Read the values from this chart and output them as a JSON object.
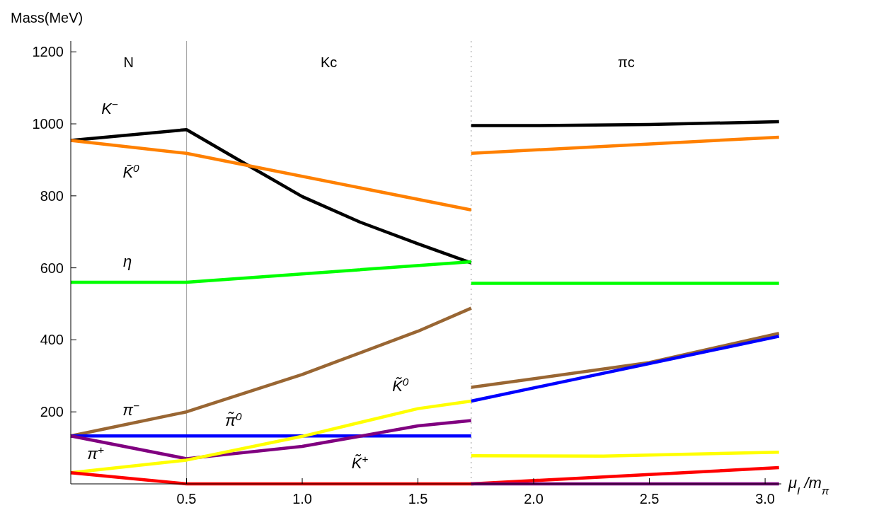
{
  "chart_data": {
    "type": "line",
    "xlabel": "μ$_{I}$ /m$_{π}$",
    "ylabel": "Mass(MeV)",
    "xlim": [
      0,
      3.07
    ],
    "ylim": [
      0,
      1230
    ],
    "xticks": [
      0.5,
      {
        "value": 1.0,
        "label": "1.0"
      },
      1.5,
      {
        "value": 2.0,
        "label": "2.0"
      },
      2.5,
      {
        "value": 3.0,
        "label": "3.0"
      }
    ],
    "yticks": [
      200,
      400,
      600,
      800,
      1000,
      1200
    ],
    "grid": false,
    "line_style": "solid",
    "series": [
      {
        "name": "K$^{−}$",
        "color": "#000000",
        "x": [
          0,
          0.5,
          0.8,
          1.0,
          1.25,
          1.5,
          1.73
        ],
        "values": [
          954,
          984,
          872,
          798,
          727,
          667,
          614
        ]
      },
      {
        "name": "K̄$^{0}$",
        "color": "#ff8000",
        "x": [
          0,
          0.5,
          1.73
        ],
        "values": [
          954,
          918,
          761
        ]
      },
      {
        "name": "η",
        "color": "#00ff00",
        "x": [
          0,
          0.5,
          1.73
        ],
        "values": [
          560,
          560,
          617
        ]
      },
      {
        "name": "π$^{−}$",
        "color": "#996633",
        "x": [
          0,
          0.5,
          1.0,
          1.5,
          1.73
        ],
        "values": [
          133,
          200,
          304,
          424,
          488
        ]
      },
      {
        "name": "π̃$^{0}$",
        "color": "#0000ff",
        "x": [
          0,
          0.5,
          1.73
        ],
        "values": [
          133,
          133,
          133
        ]
      },
      {
        "name": "π$^{+}$",
        "color": "#800080",
        "x": [
          0,
          0.5,
          1.0,
          1.5,
          1.73
        ],
        "values": [
          133,
          70,
          104,
          161,
          176
        ]
      },
      {
        "name": "K̃$^{0}$",
        "color": "#ffff00",
        "x": [
          0,
          0.5,
          1.0,
          1.5,
          1.73
        ],
        "values": [
          31,
          66,
          132,
          209,
          230
        ]
      },
      {
        "name": "K̃$^{+}$",
        "color": "#ff0000",
        "x": [
          0,
          0.5,
          1.73,
          2.5,
          3.06
        ],
        "values": [
          31,
          0,
          0,
          26,
          45
        ]
      },
      {
        "color": "#000000",
        "x": [
          1.73,
          2.0,
          2.5,
          3.06
        ],
        "values": [
          995,
          995,
          998,
          1006
        ]
      },
      {
        "color": "#ff8000",
        "x": [
          1.73,
          3.06
        ],
        "values": [
          918,
          963
        ]
      },
      {
        "color": "#00ff00",
        "x": [
          1.73,
          3.06
        ],
        "values": [
          557,
          557
        ]
      },
      {
        "color": "#996633",
        "x": [
          1.73,
          2.5,
          3.06
        ],
        "values": [
          268,
          337,
          418
        ]
      },
      {
        "color": "#0000ff",
        "x": [
          1.73,
          3.06
        ],
        "values": [
          230,
          410
        ]
      },
      {
        "color": "#800080",
        "x": [
          1.73,
          3.06
        ],
        "values": [
          0,
          0
        ]
      },
      {
        "color": "#ffff00",
        "x": [
          1.73,
          2.3,
          3.06
        ],
        "values": [
          78,
          77,
          88
        ]
      }
    ],
    "ref_lines": [
      {
        "axis": "x",
        "value": 0.5,
        "color": "#aaaaaa",
        "line_style": "solid"
      },
      {
        "axis": "x",
        "value": 1.73,
        "color": "#aaaaaa",
        "line_style": "dotted"
      }
    ],
    "annotations": [
      "N",
      "Kc",
      "πc"
    ]
  }
}
